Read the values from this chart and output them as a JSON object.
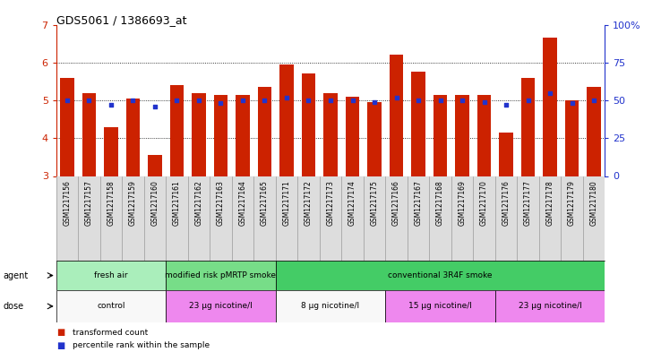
{
  "title": "GDS5061 / 1386693_at",
  "samples": [
    "GSM1217156",
    "GSM1217157",
    "GSM1217158",
    "GSM1217159",
    "GSM1217160",
    "GSM1217161",
    "GSM1217162",
    "GSM1217163",
    "GSM1217164",
    "GSM1217165",
    "GSM1217171",
    "GSM1217172",
    "GSM1217173",
    "GSM1217174",
    "GSM1217175",
    "GSM1217166",
    "GSM1217167",
    "GSM1217168",
    "GSM1217169",
    "GSM1217170",
    "GSM1217176",
    "GSM1217177",
    "GSM1217178",
    "GSM1217179",
    "GSM1217180"
  ],
  "bar_values": [
    5.6,
    5.2,
    4.3,
    5.05,
    3.55,
    5.4,
    5.2,
    5.15,
    5.15,
    5.35,
    5.95,
    5.7,
    5.2,
    5.1,
    4.95,
    6.2,
    5.75,
    5.15,
    5.15,
    5.15,
    4.15,
    5.6,
    6.65,
    5.0,
    5.35
  ],
  "dot_values": [
    50,
    50,
    47,
    50,
    46,
    50,
    50,
    48,
    50,
    50,
    52,
    50,
    50,
    50,
    49,
    52,
    50,
    50,
    50,
    49,
    47,
    50,
    55,
    48,
    50
  ],
  "ylim_left": [
    3,
    7
  ],
  "ylim_right": [
    0,
    100
  ],
  "yticks_left": [
    3,
    4,
    5,
    6,
    7
  ],
  "yticks_right": [
    0,
    25,
    50,
    75,
    100
  ],
  "bar_color": "#CC2200",
  "dot_color": "#2233CC",
  "bar_bottom": 3,
  "agent_groups": [
    {
      "label": "fresh air",
      "start": 0,
      "end": 5,
      "color": "#AAEEBB"
    },
    {
      "label": "modified risk pMRTP smoke",
      "start": 5,
      "end": 10,
      "color": "#77DD88"
    },
    {
      "label": "conventional 3R4F smoke",
      "start": 10,
      "end": 25,
      "color": "#44CC66"
    }
  ],
  "dose_groups": [
    {
      "label": "control",
      "start": 0,
      "end": 5,
      "color": "#F8F8F8"
    },
    {
      "label": "23 μg nicotine/l",
      "start": 5,
      "end": 10,
      "color": "#EE88EE"
    },
    {
      "label": "8 μg nicotine/l",
      "start": 10,
      "end": 15,
      "color": "#F8F8F8"
    },
    {
      "label": "15 μg nicotine/l",
      "start": 15,
      "end": 20,
      "color": "#EE88EE"
    },
    {
      "label": "23 μg nicotine/l",
      "start": 20,
      "end": 25,
      "color": "#EE88EE"
    }
  ],
  "legend_items": [
    {
      "label": "transformed count",
      "color": "#CC2200"
    },
    {
      "label": "percentile rank within the sample",
      "color": "#2233CC"
    }
  ],
  "grid_color": "#000000",
  "left_tick_color": "#CC2200",
  "right_tick_color": "#2233CC",
  "agent_label": "agent",
  "dose_label": "dose",
  "xlabel_bg": "#DDDDDD",
  "agent_border_color": "#000000",
  "dose_border_color": "#000000"
}
